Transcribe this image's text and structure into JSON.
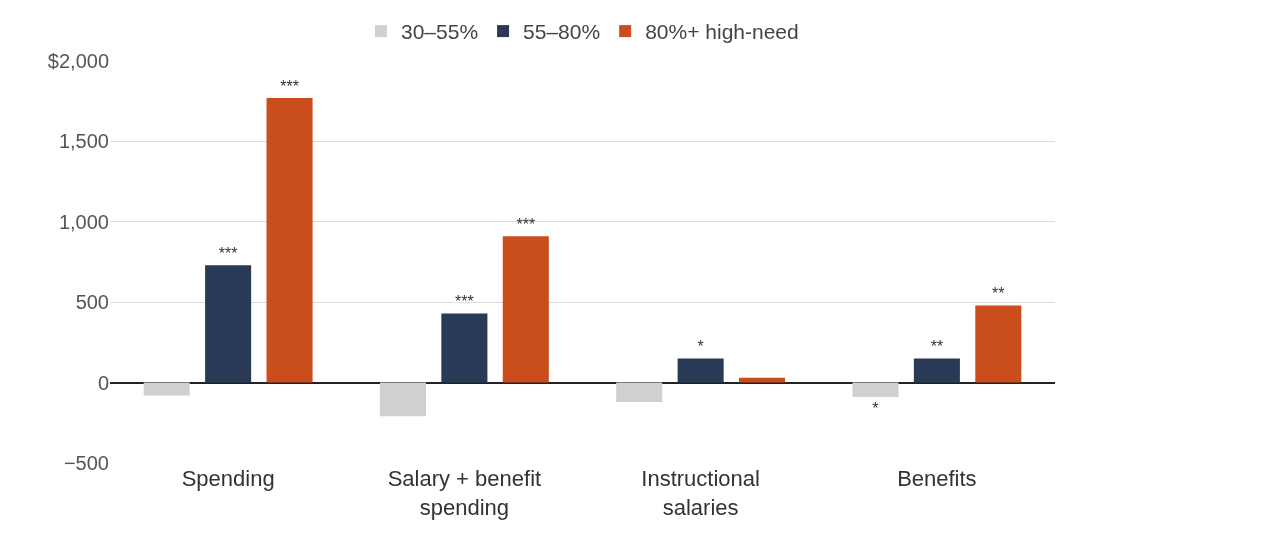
{
  "chart_data": {
    "type": "bar",
    "categories": [
      "Spending",
      "Salary + benefit spending",
      "Instructional salaries",
      "Benefits"
    ],
    "series": [
      {
        "name": "30–55%",
        "color": "#d0d0d0",
        "values": [
          -80,
          -210,
          -120,
          -90
        ],
        "value_labels": [
          null,
          null,
          null,
          "*"
        ]
      },
      {
        "name": "55–80%",
        "color": "#283a55",
        "values": [
          730,
          430,
          150,
          150
        ],
        "value_labels": [
          "***",
          "***",
          "*",
          "**"
        ]
      },
      {
        "name": "80%+ high-need",
        "color": "#c94e1c",
        "values": [
          1770,
          910,
          30,
          480
        ],
        "value_labels": [
          "***",
          "***",
          null,
          "**"
        ]
      }
    ],
    "ylim": [
      -500,
      2000
    ],
    "yticks": [
      {
        "value": -500,
        "label": "−500"
      },
      0,
      500,
      {
        "value": 1000,
        "label": "1,000"
      },
      {
        "value": 1500,
        "label": "1,500"
      },
      {
        "value": 2000,
        "label": "$2,000"
      }
    ],
    "grid": "y",
    "legend": "top"
  }
}
